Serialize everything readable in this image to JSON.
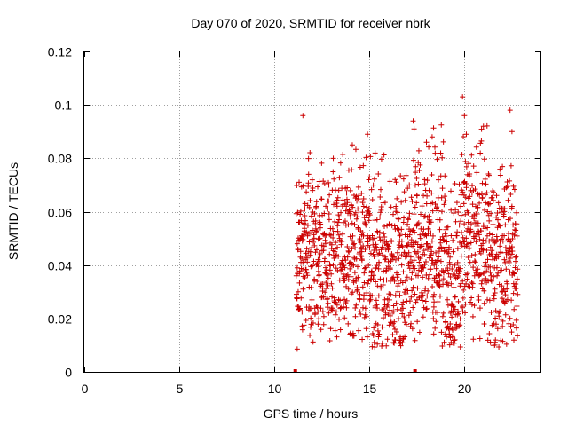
{
  "chart_data": {
    "type": "scatter",
    "title": "Day 070 of 2020, SRMTID for receiver nbrk",
    "xlabel": "GPS time / hours",
    "ylabel": "SRMTID / TECUs",
    "xlim": [
      0,
      24
    ],
    "ylim": [
      0,
      0.12
    ],
    "xticks": [
      0,
      5,
      10,
      15,
      20
    ],
    "xtick_labels": [
      "0",
      "5",
      "10",
      "15",
      "20"
    ],
    "yticks": [
      0,
      0.02,
      0.04,
      0.06,
      0.08,
      0.1,
      0.12
    ],
    "ytick_labels": [
      "0",
      "0.02",
      "0.04",
      "0.06",
      "0.08",
      "0.1",
      "0.12"
    ],
    "grid": true,
    "marker": "+",
    "color": "#cc0000",
    "series": [
      {
        "name": "SRMTID",
        "note": "dense scatter of roughly 1500 points between about 11.1 h and 22.8 h",
        "x": [
          11.15,
          11.2,
          11.25,
          11.3,
          11.35,
          11.4,
          11.5,
          11.6,
          11.7,
          11.8,
          11.9,
          12.0,
          12.1,
          12.2,
          12.3,
          12.4,
          12.5,
          12.6,
          12.7,
          12.8,
          12.9,
          13.0,
          13.1,
          13.2,
          13.3,
          13.4,
          13.5,
          13.6,
          13.7,
          13.8,
          13.9,
          14.0,
          14.1,
          14.2,
          14.3,
          14.4,
          14.5,
          14.6,
          14.7,
          14.8,
          14.9,
          15.0,
          15.1,
          15.2,
          15.3,
          15.4,
          15.5,
          15.6,
          15.7,
          15.8,
          15.9,
          16.0,
          16.1,
          16.2,
          16.3,
          16.4,
          16.5,
          16.6,
          16.7,
          16.8,
          16.9,
          17.0,
          17.1,
          17.2,
          17.3,
          17.4,
          17.5,
          17.6,
          17.7,
          17.8,
          17.9,
          18.0,
          18.1,
          18.2,
          18.3,
          18.4,
          18.5,
          18.6,
          18.7,
          18.8,
          18.9,
          19.0,
          19.1,
          19.2,
          19.3,
          19.4,
          19.5,
          19.6,
          19.7,
          19.8,
          19.9,
          20.0,
          20.1,
          20.2,
          20.3,
          20.4,
          20.5,
          20.6,
          20.7,
          20.8,
          20.9,
          21.0,
          21.1,
          21.2,
          21.3,
          21.4,
          21.5,
          21.6,
          21.7,
          21.8,
          21.9,
          22.0,
          22.1,
          22.2,
          22.3,
          22.4,
          22.5,
          22.6,
          22.7,
          22.8,
          11.5,
          13.1,
          14.1,
          14.9,
          15.3,
          17.3,
          17.35,
          18.0,
          18.3,
          19.9,
          20.0,
          20.1,
          21.0,
          22.4,
          22.5,
          11.2,
          19.3,
          19.5,
          21.6,
          22.0
        ],
        "y": [
          0.036,
          0.048,
          0.03,
          0.071,
          0.059,
          0.05,
          0.041,
          0.061,
          0.037,
          0.074,
          0.045,
          0.053,
          0.034,
          0.062,
          0.042,
          0.05,
          0.028,
          0.047,
          0.039,
          0.064,
          0.044,
          0.033,
          0.052,
          0.046,
          0.025,
          0.057,
          0.038,
          0.049,
          0.043,
          0.067,
          0.031,
          0.058,
          0.04,
          0.048,
          0.035,
          0.054,
          0.029,
          0.045,
          0.062,
          0.039,
          0.051,
          0.073,
          0.036,
          0.044,
          0.024,
          0.057,
          0.041,
          0.032,
          0.049,
          0.027,
          0.038,
          0.046,
          0.021,
          0.035,
          0.043,
          0.062,
          0.03,
          0.051,
          0.04,
          0.056,
          0.034,
          0.047,
          0.07,
          0.028,
          0.053,
          0.045,
          0.066,
          0.038,
          0.059,
          0.044,
          0.072,
          0.051,
          0.035,
          0.063,
          0.049,
          0.029,
          0.041,
          0.057,
          0.032,
          0.046,
          0.022,
          0.038,
          0.027,
          0.016,
          0.033,
          0.045,
          0.028,
          0.051,
          0.039,
          0.062,
          0.034,
          0.071,
          0.047,
          0.056,
          0.041,
          0.067,
          0.052,
          0.038,
          0.061,
          0.045,
          0.033,
          0.055,
          0.041,
          0.027,
          0.049,
          0.036,
          0.058,
          0.031,
          0.044,
          0.022,
          0.038,
          0.051,
          0.042,
          0.069,
          0.057,
          0.045,
          0.062,
          0.037,
          0.053,
          0.029,
          0.096,
          0.08,
          0.085,
          0.089,
          0.082,
          0.094,
          0.091,
          0.086,
          0.088,
          0.103,
          0.096,
          0.089,
          0.092,
          0.098,
          0.09,
          0.0085,
          0.011,
          0.012,
          0.01,
          0.017
        ]
      },
      {
        "name": "zero-value markers",
        "x": [
          11.1,
          17.4
        ],
        "y": [
          0,
          0
        ]
      }
    ]
  }
}
